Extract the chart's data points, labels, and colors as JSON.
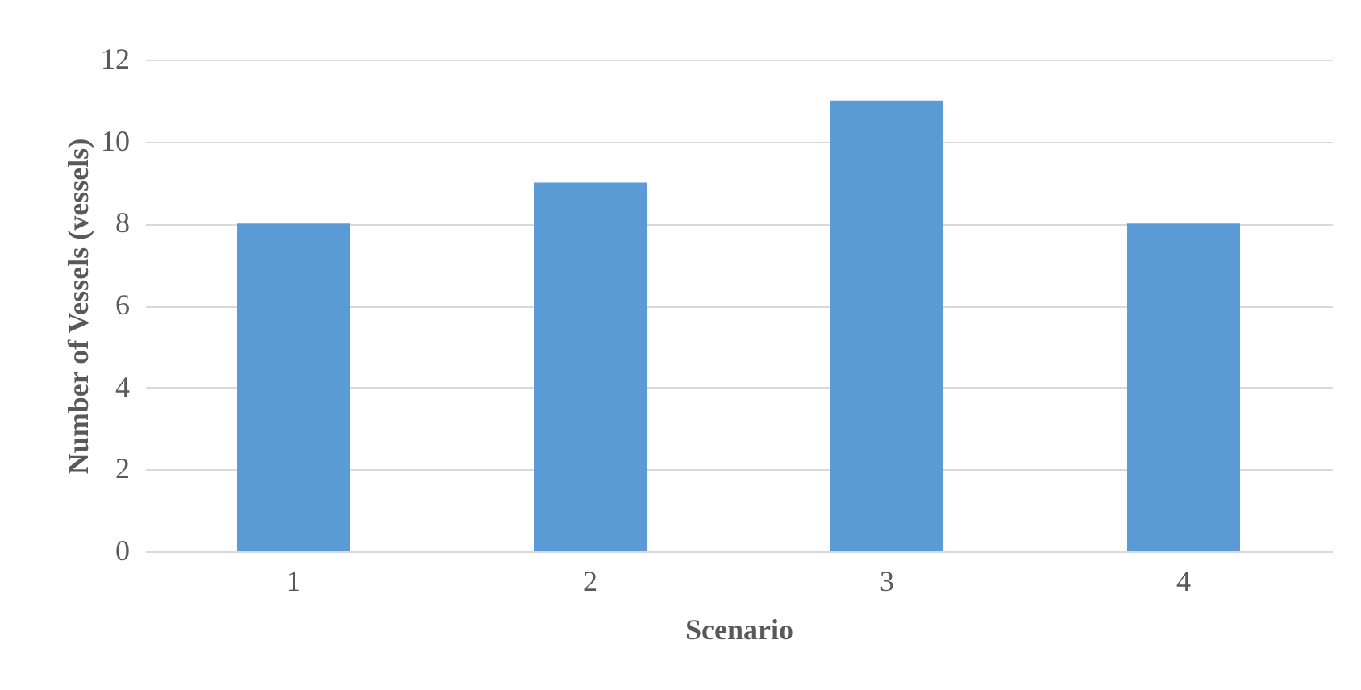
{
  "chart_data": {
    "type": "bar",
    "xlabel": "Scenario",
    "ylabel": "Number of Vessels (vessels)",
    "categories": [
      "1",
      "2",
      "3",
      "4"
    ],
    "values": [
      8,
      9,
      11,
      8
    ],
    "color": "#5b9bd5",
    "ylim": [
      0,
      12
    ],
    "yticks": [
      0,
      2,
      4,
      6,
      8,
      10,
      12
    ],
    "grid": "y"
  }
}
